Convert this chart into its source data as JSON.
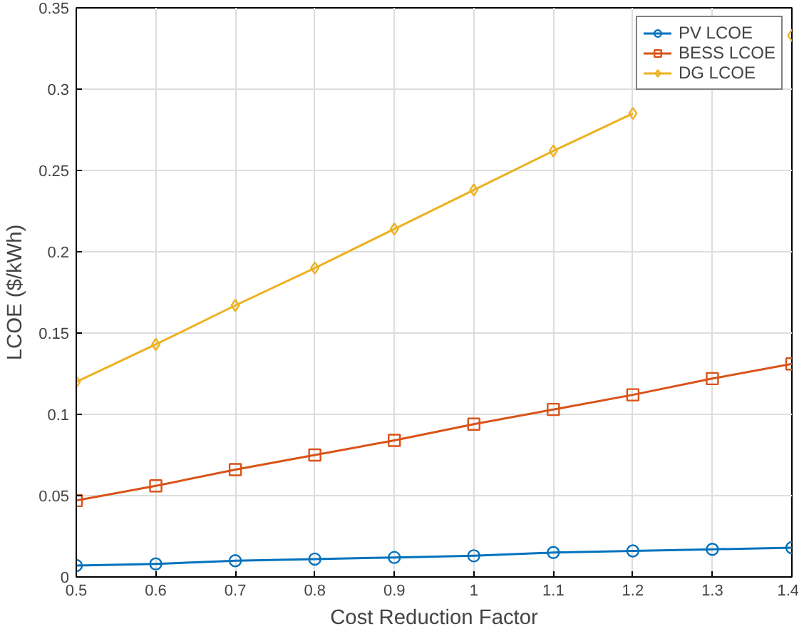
{
  "chart_data": {
    "type": "line",
    "xlabel": "Cost Reduction Factor",
    "ylabel": "LCOE ($/kWh)",
    "x": [
      0.5,
      0.6,
      0.7,
      0.8,
      0.9,
      1.0,
      1.1,
      1.2,
      1.3,
      1.4
    ],
    "series": [
      {
        "name": "PV LCOE",
        "color": "#0072bd",
        "marker": "circle",
        "values": [
          0.007,
          0.008,
          0.01,
          0.011,
          0.012,
          0.013,
          0.015,
          0.016,
          0.017,
          0.018
        ]
      },
      {
        "name": "BESS LCOE",
        "color": "#d95319",
        "marker": "square",
        "values": [
          0.047,
          0.056,
          0.066,
          0.075,
          0.084,
          0.094,
          0.103,
          0.112,
          0.122,
          0.131
        ]
      },
      {
        "name": "DG LCOE",
        "color": "#edb120",
        "marker": "diamond",
        "values": [
          0.12,
          0.143,
          0.167,
          0.19,
          0.214,
          0.238,
          0.262,
          0.285,
          null,
          0.333
        ]
      }
    ],
    "xlim": [
      0.5,
      1.4
    ],
    "ylim": [
      0,
      0.35
    ],
    "xticks": [
      0.5,
      0.6,
      0.7,
      0.8,
      0.9,
      1,
      1.1,
      1.2,
      1.3,
      1.4
    ],
    "yticks": [
      0,
      0.05,
      0.1,
      0.15,
      0.2,
      0.25,
      0.3,
      0.35
    ],
    "grid": true,
    "legend": "top right",
    "line_style": "solid"
  }
}
